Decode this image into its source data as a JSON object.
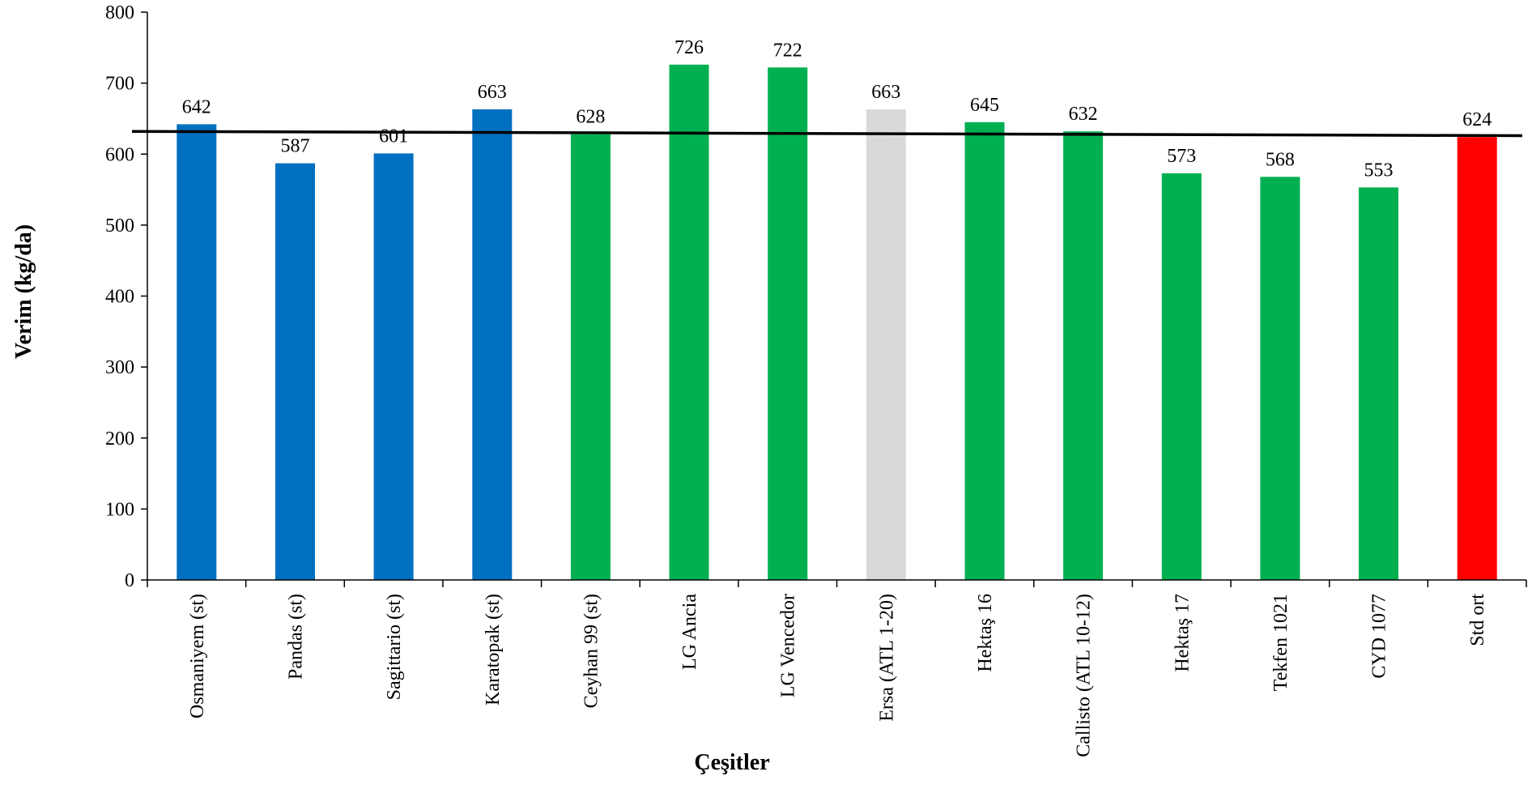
{
  "chart_data": {
    "type": "bar",
    "title": "",
    "xlabel": "Çeşitler",
    "ylabel": "Verim (kg/da)",
    "ylim": [
      0,
      800
    ],
    "yticks": [
      0,
      100,
      200,
      300,
      400,
      500,
      600,
      700,
      800
    ],
    "grid": false,
    "legend": "none",
    "categories": [
      "Osmaniyem (st)",
      "Pandas (st)",
      "Sagittario (st)",
      "Karatopak (st)",
      "Ceyhan 99 (st)",
      "LG Ancia",
      "LG Vencedor",
      "Ersa (ATL 1-20)",
      "Hektaş 16",
      "Callisto (ATL 10-12)",
      "Hektaş 17",
      "Tekfen 1021",
      "CYD 1077",
      "Std ort"
    ],
    "values": [
      642,
      587,
      601,
      663,
      628,
      726,
      722,
      663,
      645,
      632,
      573,
      568,
      553,
      624
    ],
    "bar_colors": [
      "#0070C0",
      "#0070C0",
      "#0070C0",
      "#0070C0",
      "#00B050",
      "#00B050",
      "#00B050",
      "#D9D9D9",
      "#00B050",
      "#00B050",
      "#00B050",
      "#00B050",
      "#00B050",
      "#FF0000"
    ],
    "reference_line": {
      "start_value": 632,
      "end_value": 626,
      "color": "#000000"
    }
  }
}
